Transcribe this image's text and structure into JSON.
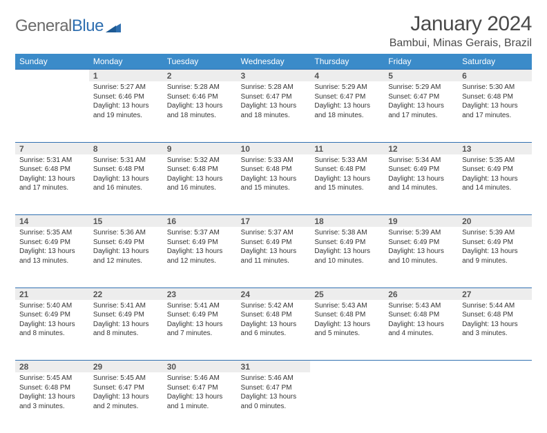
{
  "logo": {
    "text1": "General",
    "text2": "Blue"
  },
  "title": "January 2024",
  "location": "Bambui, Minas Gerais, Brazil",
  "headers": [
    "Sunday",
    "Monday",
    "Tuesday",
    "Wednesday",
    "Thursday",
    "Friday",
    "Saturday"
  ],
  "colors": {
    "header_bg": "#3b8bc9",
    "daynum_bg": "#ededed",
    "row_border": "#2f6fb0",
    "logo_gray": "#6b6b6b",
    "logo_blue": "#2f6fb0"
  },
  "weeks": [
    {
      "nums": [
        "",
        "1",
        "2",
        "3",
        "4",
        "5",
        "6"
      ],
      "cells": [
        {
          "empty": true
        },
        {
          "sunrise": "Sunrise: 5:27 AM",
          "sunset": "Sunset: 6:46 PM",
          "day1": "Daylight: 13 hours",
          "day2": "and 19 minutes."
        },
        {
          "sunrise": "Sunrise: 5:28 AM",
          "sunset": "Sunset: 6:46 PM",
          "day1": "Daylight: 13 hours",
          "day2": "and 18 minutes."
        },
        {
          "sunrise": "Sunrise: 5:28 AM",
          "sunset": "Sunset: 6:47 PM",
          "day1": "Daylight: 13 hours",
          "day2": "and 18 minutes."
        },
        {
          "sunrise": "Sunrise: 5:29 AM",
          "sunset": "Sunset: 6:47 PM",
          "day1": "Daylight: 13 hours",
          "day2": "and 18 minutes."
        },
        {
          "sunrise": "Sunrise: 5:29 AM",
          "sunset": "Sunset: 6:47 PM",
          "day1": "Daylight: 13 hours",
          "day2": "and 17 minutes."
        },
        {
          "sunrise": "Sunrise: 5:30 AM",
          "sunset": "Sunset: 6:48 PM",
          "day1": "Daylight: 13 hours",
          "day2": "and 17 minutes."
        }
      ]
    },
    {
      "nums": [
        "7",
        "8",
        "9",
        "10",
        "11",
        "12",
        "13"
      ],
      "cells": [
        {
          "sunrise": "Sunrise: 5:31 AM",
          "sunset": "Sunset: 6:48 PM",
          "day1": "Daylight: 13 hours",
          "day2": "and 17 minutes."
        },
        {
          "sunrise": "Sunrise: 5:31 AM",
          "sunset": "Sunset: 6:48 PM",
          "day1": "Daylight: 13 hours",
          "day2": "and 16 minutes."
        },
        {
          "sunrise": "Sunrise: 5:32 AM",
          "sunset": "Sunset: 6:48 PM",
          "day1": "Daylight: 13 hours",
          "day2": "and 16 minutes."
        },
        {
          "sunrise": "Sunrise: 5:33 AM",
          "sunset": "Sunset: 6:48 PM",
          "day1": "Daylight: 13 hours",
          "day2": "and 15 minutes."
        },
        {
          "sunrise": "Sunrise: 5:33 AM",
          "sunset": "Sunset: 6:48 PM",
          "day1": "Daylight: 13 hours",
          "day2": "and 15 minutes."
        },
        {
          "sunrise": "Sunrise: 5:34 AM",
          "sunset": "Sunset: 6:49 PM",
          "day1": "Daylight: 13 hours",
          "day2": "and 14 minutes."
        },
        {
          "sunrise": "Sunrise: 5:35 AM",
          "sunset": "Sunset: 6:49 PM",
          "day1": "Daylight: 13 hours",
          "day2": "and 14 minutes."
        }
      ]
    },
    {
      "nums": [
        "14",
        "15",
        "16",
        "17",
        "18",
        "19",
        "20"
      ],
      "cells": [
        {
          "sunrise": "Sunrise: 5:35 AM",
          "sunset": "Sunset: 6:49 PM",
          "day1": "Daylight: 13 hours",
          "day2": "and 13 minutes."
        },
        {
          "sunrise": "Sunrise: 5:36 AM",
          "sunset": "Sunset: 6:49 PM",
          "day1": "Daylight: 13 hours",
          "day2": "and 12 minutes."
        },
        {
          "sunrise": "Sunrise: 5:37 AM",
          "sunset": "Sunset: 6:49 PM",
          "day1": "Daylight: 13 hours",
          "day2": "and 12 minutes."
        },
        {
          "sunrise": "Sunrise: 5:37 AM",
          "sunset": "Sunset: 6:49 PM",
          "day1": "Daylight: 13 hours",
          "day2": "and 11 minutes."
        },
        {
          "sunrise": "Sunrise: 5:38 AM",
          "sunset": "Sunset: 6:49 PM",
          "day1": "Daylight: 13 hours",
          "day2": "and 10 minutes."
        },
        {
          "sunrise": "Sunrise: 5:39 AM",
          "sunset": "Sunset: 6:49 PM",
          "day1": "Daylight: 13 hours",
          "day2": "and 10 minutes."
        },
        {
          "sunrise": "Sunrise: 5:39 AM",
          "sunset": "Sunset: 6:49 PM",
          "day1": "Daylight: 13 hours",
          "day2": "and 9 minutes."
        }
      ]
    },
    {
      "nums": [
        "21",
        "22",
        "23",
        "24",
        "25",
        "26",
        "27"
      ],
      "cells": [
        {
          "sunrise": "Sunrise: 5:40 AM",
          "sunset": "Sunset: 6:49 PM",
          "day1": "Daylight: 13 hours",
          "day2": "and 8 minutes."
        },
        {
          "sunrise": "Sunrise: 5:41 AM",
          "sunset": "Sunset: 6:49 PM",
          "day1": "Daylight: 13 hours",
          "day2": "and 8 minutes."
        },
        {
          "sunrise": "Sunrise: 5:41 AM",
          "sunset": "Sunset: 6:49 PM",
          "day1": "Daylight: 13 hours",
          "day2": "and 7 minutes."
        },
        {
          "sunrise": "Sunrise: 5:42 AM",
          "sunset": "Sunset: 6:48 PM",
          "day1": "Daylight: 13 hours",
          "day2": "and 6 minutes."
        },
        {
          "sunrise": "Sunrise: 5:43 AM",
          "sunset": "Sunset: 6:48 PM",
          "day1": "Daylight: 13 hours",
          "day2": "and 5 minutes."
        },
        {
          "sunrise": "Sunrise: 5:43 AM",
          "sunset": "Sunset: 6:48 PM",
          "day1": "Daylight: 13 hours",
          "day2": "and 4 minutes."
        },
        {
          "sunrise": "Sunrise: 5:44 AM",
          "sunset": "Sunset: 6:48 PM",
          "day1": "Daylight: 13 hours",
          "day2": "and 3 minutes."
        }
      ]
    },
    {
      "nums": [
        "28",
        "29",
        "30",
        "31",
        "",
        "",
        ""
      ],
      "cells": [
        {
          "sunrise": "Sunrise: 5:45 AM",
          "sunset": "Sunset: 6:48 PM",
          "day1": "Daylight: 13 hours",
          "day2": "and 3 minutes."
        },
        {
          "sunrise": "Sunrise: 5:45 AM",
          "sunset": "Sunset: 6:47 PM",
          "day1": "Daylight: 13 hours",
          "day2": "and 2 minutes."
        },
        {
          "sunrise": "Sunrise: 5:46 AM",
          "sunset": "Sunset: 6:47 PM",
          "day1": "Daylight: 13 hours",
          "day2": "and 1 minute."
        },
        {
          "sunrise": "Sunrise: 5:46 AM",
          "sunset": "Sunset: 6:47 PM",
          "day1": "Daylight: 13 hours",
          "day2": "and 0 minutes."
        },
        {
          "empty": true
        },
        {
          "empty": true
        },
        {
          "empty": true
        }
      ]
    }
  ]
}
